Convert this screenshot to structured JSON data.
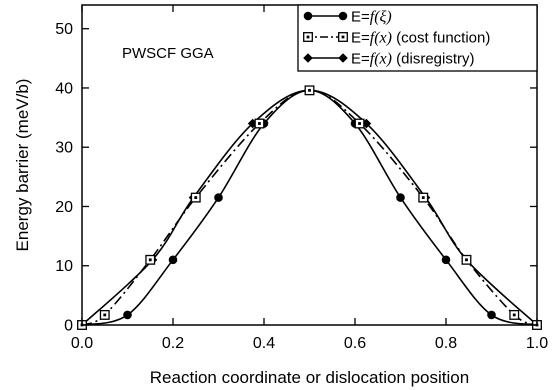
{
  "chart_data": {
    "type": "line",
    "annotation": "PWSCF GGA",
    "xlabel": "Reaction coordinate or dislocation position",
    "ylabel": "Energy barrier (meV/b)",
    "xlim": [
      0,
      1
    ],
    "ylim": [
      0,
      54
    ],
    "xticks": [
      0.0,
      0.2,
      0.4,
      0.6,
      0.8,
      1.0
    ],
    "xtick_labels": [
      "0.0",
      "0.2",
      "0.4",
      "0.6",
      "0.8",
      "1.0"
    ],
    "yticks": [
      0,
      10,
      20,
      30,
      40,
      50
    ],
    "ytick_labels": [
      "0",
      "10",
      "20",
      "30",
      "40",
      "50"
    ],
    "grid": false,
    "legend_position": "top-right",
    "series": [
      {
        "name": "E=f(ξ)",
        "legend_prefix": "E=",
        "legend_func": "f",
        "legend_arg": "(ξ)",
        "legend_suffix": "",
        "marker": "circle",
        "line_style": "solid",
        "color": "#000000",
        "points": [
          [
            0.0,
            0.0
          ],
          [
            0.1,
            1.7
          ],
          [
            0.2,
            11.0
          ],
          [
            0.3,
            21.5
          ],
          [
            0.4,
            34.0
          ],
          [
            0.5,
            39.6
          ],
          [
            0.6,
            34.0
          ],
          [
            0.7,
            21.5
          ],
          [
            0.8,
            11.0
          ],
          [
            0.9,
            1.7
          ],
          [
            1.0,
            0.0
          ]
        ]
      },
      {
        "name": "E=f(x) (cost function)",
        "legend_prefix": "E=",
        "legend_func": "f",
        "legend_arg": "(x)",
        "legend_suffix": " (cost function)",
        "marker": "square-open",
        "line_style": "dash-dot",
        "color": "#000000",
        "points": [
          [
            0.0,
            0.0
          ],
          [
            0.05,
            1.7
          ],
          [
            0.15,
            11.0
          ],
          [
            0.25,
            21.5
          ],
          [
            0.39,
            34.0
          ],
          [
            0.5,
            39.6
          ],
          [
            0.61,
            34.0
          ],
          [
            0.75,
            21.5
          ],
          [
            0.845,
            11.0
          ],
          [
            0.95,
            1.7
          ],
          [
            1.0,
            0.0
          ]
        ]
      },
      {
        "name": "E=f(x) (disregistry)",
        "legend_prefix": "E=",
        "legend_func": "f",
        "legend_arg": "(x)",
        "legend_suffix": " (disregistry)",
        "marker": "diamond",
        "line_style": "solid",
        "color": "#000000",
        "points": [
          [
            0.0,
            0.0
          ],
          [
            0.155,
            11.0
          ],
          [
            0.245,
            21.5
          ],
          [
            0.375,
            34.0
          ],
          [
            0.5,
            39.6
          ],
          [
            0.625,
            34.0
          ],
          [
            0.755,
            21.5
          ],
          [
            0.845,
            11.0
          ],
          [
            1.0,
            0.0
          ]
        ]
      }
    ]
  }
}
